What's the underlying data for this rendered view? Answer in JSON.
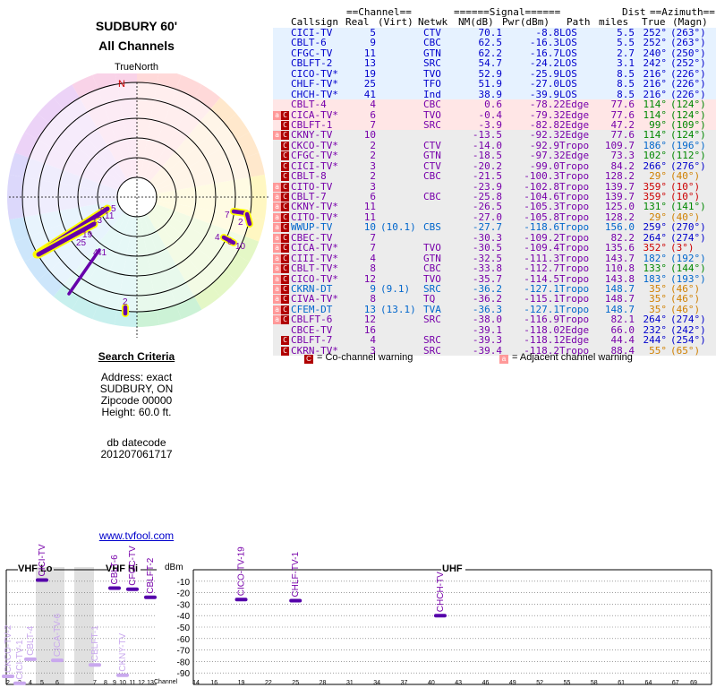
{
  "report": {
    "title_line1": "SUDBURY 60'",
    "title_line2": "All Channels",
    "true_north_label": "TrueNorth",
    "north_letter": "N"
  },
  "criteria": {
    "header": "Search Criteria",
    "address": "Address: exact",
    "location": "SUDBURY, ON",
    "zipcode": "Zipcode 00000",
    "height": "Height: 60.0 ft.",
    "db_label": "db datecode",
    "db_value": "201207061717"
  },
  "link_text": "www.tvfool.com",
  "table_headers": {
    "channel_group": "==Channel==",
    "signal_group": "======Signal======",
    "dist_top": "Dist",
    "azimuth_group": "==Azimuth==",
    "callsign": "Callsign",
    "real": "Real",
    "virt": "(Virt)",
    "netwk": "Netwk",
    "nm": "NM(dB)",
    "pwr": "Pwr(dBm)",
    "path": "Path",
    "miles": "miles",
    "true": "True",
    "magn": "(Magn)"
  },
  "colors": {
    "green": "#008800",
    "blue": "#0000cc",
    "purple": "#7700aa",
    "red": "#cc0000",
    "orange": "#d08000",
    "teal": "#009999",
    "cyan": "#0066cc",
    "yellow": "#ffff00"
  },
  "stations": [
    {
      "callsign": "CICI-TV",
      "real": "5",
      "virt": "",
      "netwk": "CTV",
      "nm": "70.1",
      "pwr": "-8.8",
      "path": "LOS",
      "miles": "5.5",
      "az_true": "252°",
      "az_magn": "(263°)",
      "color": "blue",
      "az_color": "blue",
      "band": "los",
      "warn": ""
    },
    {
      "callsign": "CBLT-6",
      "real": "9",
      "virt": "",
      "netwk": "CBC",
      "nm": "62.5",
      "pwr": "-16.3",
      "path": "LOS",
      "miles": "5.5",
      "az_true": "252°",
      "az_magn": "(263°)",
      "color": "blue",
      "az_color": "blue",
      "band": "los",
      "warn": ""
    },
    {
      "callsign": "CFGC-TV",
      "real": "11",
      "virt": "",
      "netwk": "GTN",
      "nm": "62.2",
      "pwr": "-16.7",
      "path": "LOS",
      "miles": "2.7",
      "az_true": "240°",
      "az_magn": "(250°)",
      "color": "blue",
      "az_color": "blue",
      "band": "los",
      "warn": ""
    },
    {
      "callsign": "CBLFT-2",
      "real": "13",
      "virt": "",
      "netwk": "SRC",
      "nm": "54.7",
      "pwr": "-24.2",
      "path": "LOS",
      "miles": "3.1",
      "az_true": "242°",
      "az_magn": "(252°)",
      "color": "blue",
      "az_color": "blue",
      "band": "los",
      "warn": ""
    },
    {
      "callsign": "CICO-TV*",
      "real": "19",
      "virt": "",
      "netwk": "TVO",
      "nm": "52.9",
      "pwr": "-25.9",
      "path": "LOS",
      "miles": "8.5",
      "az_true": "216°",
      "az_magn": "(226°)",
      "color": "blue",
      "az_color": "blue",
      "band": "los",
      "warn": ""
    },
    {
      "callsign": "CHLF-TV*",
      "real": "25",
      "virt": "",
      "netwk": "TFO",
      "nm": "51.9",
      "pwr": "-27.0",
      "path": "LOS",
      "miles": "8.5",
      "az_true": "216°",
      "az_magn": "(226°)",
      "color": "blue",
      "az_color": "blue",
      "band": "los",
      "warn": ""
    },
    {
      "callsign": "CHCH-TV*",
      "real": "41",
      "virt": "",
      "netwk": "Ind",
      "nm": "38.9",
      "pwr": "-39.9",
      "path": "LOS",
      "miles": "8.5",
      "az_true": "216°",
      "az_magn": "(226°)",
      "color": "blue",
      "az_color": "blue",
      "band": "los",
      "warn": ""
    },
    {
      "callsign": "CBLT-4",
      "real": "4",
      "virt": "",
      "netwk": "CBC",
      "nm": "0.6",
      "pwr": "-78.2",
      "path": "2Edge",
      "miles": "77.6",
      "az_true": "114°",
      "az_magn": "(124°)",
      "color": "purple",
      "az_color": "green",
      "band": "edge",
      "warn": ""
    },
    {
      "callsign": "CICA-TV*",
      "real": "6",
      "virt": "",
      "netwk": "TVO",
      "nm": "-0.4",
      "pwr": "-79.3",
      "path": "2Edge",
      "miles": "77.6",
      "az_true": "114°",
      "az_magn": "(124°)",
      "color": "purple",
      "az_color": "green",
      "band": "edge",
      "warn": "ac"
    },
    {
      "callsign": "CBLFT-1",
      "real": "7",
      "virt": "",
      "netwk": "SRC",
      "nm": "-3.9",
      "pwr": "-82.8",
      "path": "2Edge",
      "miles": "47.2",
      "az_true": "99°",
      "az_magn": "(109°)",
      "color": "purple",
      "az_color": "green",
      "band": "edge",
      "warn": "c"
    },
    {
      "callsign": "CKNY-TV",
      "real": "10",
      "virt": "",
      "netwk": "",
      "nm": "-13.5",
      "pwr": "-92.3",
      "path": "2Edge",
      "miles": "77.6",
      "az_true": "114°",
      "az_magn": "(124°)",
      "color": "purple",
      "az_color": "green",
      "band": "tropo",
      "warn": "ac"
    },
    {
      "callsign": "CKCO-TV*",
      "real": "2",
      "virt": "",
      "netwk": "CTV",
      "nm": "-14.0",
      "pwr": "-92.9",
      "path": "Tropo",
      "miles": "109.7",
      "az_true": "186°",
      "az_magn": "(196°)",
      "color": "purple",
      "az_color": "cyan",
      "band": "tropo",
      "warn": "c"
    },
    {
      "callsign": "CFGC-TV*",
      "real": "2",
      "virt": "",
      "netwk": "GTN",
      "nm": "-18.5",
      "pwr": "-97.3",
      "path": "2Edge",
      "miles": "73.3",
      "az_true": "102°",
      "az_magn": "(112°)",
      "color": "purple",
      "az_color": "green",
      "band": "tropo",
      "warn": "c"
    },
    {
      "callsign": "CICI-TV*",
      "real": "3",
      "virt": "",
      "netwk": "CTV",
      "nm": "-20.2",
      "pwr": "-99.0",
      "path": "Tropo",
      "miles": "84.2",
      "az_true": "266°",
      "az_magn": "(276°)",
      "color": "purple",
      "az_color": "blue",
      "band": "tropo",
      "warn": "c"
    },
    {
      "callsign": "CBLT-8",
      "real": "2",
      "virt": "",
      "netwk": "CBC",
      "nm": "-21.5",
      "pwr": "-100.3",
      "path": "Tropo",
      "miles": "128.2",
      "az_true": "29°",
      "az_magn": "(40°)",
      "color": "purple",
      "az_color": "orange",
      "band": "tropo",
      "warn": "c"
    },
    {
      "callsign": "CITO-TV",
      "real": "3",
      "virt": "",
      "netwk": "",
      "nm": "-23.9",
      "pwr": "-102.8",
      "path": "Tropo",
      "miles": "139.7",
      "az_true": "359°",
      "az_magn": "(10°)",
      "color": "purple",
      "az_color": "red",
      "band": "tropo",
      "warn": "ac"
    },
    {
      "callsign": "CBLT-7",
      "real": "6",
      "virt": "",
      "netwk": "CBC",
      "nm": "-25.8",
      "pwr": "-104.6",
      "path": "Tropo",
      "miles": "139.7",
      "az_true": "359°",
      "az_magn": "(10°)",
      "color": "purple",
      "az_color": "red",
      "band": "tropo",
      "warn": "ac"
    },
    {
      "callsign": "CKNY-TV*",
      "real": "11",
      "virt": "",
      "netwk": "",
      "nm": "-26.5",
      "pwr": "-105.3",
      "path": "Tropo",
      "miles": "125.0",
      "az_true": "131°",
      "az_magn": "(141°)",
      "color": "purple",
      "az_color": "green",
      "band": "tropo",
      "warn": "ac"
    },
    {
      "callsign": "CITO-TV*",
      "real": "11",
      "virt": "",
      "netwk": "",
      "nm": "-27.0",
      "pwr": "-105.8",
      "path": "Tropo",
      "miles": "128.2",
      "az_true": "29°",
      "az_magn": "(40°)",
      "color": "purple",
      "az_color": "orange",
      "band": "tropo",
      "warn": "ac"
    },
    {
      "callsign": "WWUP-TV",
      "real": "10",
      "virt": "(10.1)",
      "netwk": "CBS",
      "nm": "-27.7",
      "pwr": "-118.6",
      "path": "Tropo",
      "miles": "156.0",
      "az_true": "259°",
      "az_magn": "(270°)",
      "color": "cyan",
      "az_color": "blue",
      "band": "tropo",
      "warn": "ac"
    },
    {
      "callsign": "CBEC-TV",
      "real": "7",
      "virt": "",
      "netwk": "",
      "nm": "-30.3",
      "pwr": "-109.2",
      "path": "Tropo",
      "miles": "82.2",
      "az_true": "264°",
      "az_magn": "(274°)",
      "color": "purple",
      "az_color": "blue",
      "band": "tropo",
      "warn": "ac"
    },
    {
      "callsign": "CICA-TV*",
      "real": "7",
      "virt": "",
      "netwk": "TVO",
      "nm": "-30.5",
      "pwr": "-109.4",
      "path": "Tropo",
      "miles": "135.6",
      "az_true": "352°",
      "az_magn": "(3°)",
      "color": "purple",
      "az_color": "red",
      "band": "tropo",
      "warn": "ac"
    },
    {
      "callsign": "CIII-TV*",
      "real": "4",
      "virt": "",
      "netwk": "GTN",
      "nm": "-32.5",
      "pwr": "-111.3",
      "path": "Tropo",
      "miles": "143.7",
      "az_true": "182°",
      "az_magn": "(192°)",
      "color": "purple",
      "az_color": "cyan",
      "band": "tropo",
      "warn": "ac"
    },
    {
      "callsign": "CBLT-TV*",
      "real": "8",
      "virt": "",
      "netwk": "CBC",
      "nm": "-33.8",
      "pwr": "-112.7",
      "path": "Tropo",
      "miles": "110.8",
      "az_true": "133°",
      "az_magn": "(144°)",
      "color": "purple",
      "az_color": "green",
      "band": "tropo",
      "warn": "ac"
    },
    {
      "callsign": "CICO-TV*",
      "real": "12",
      "virt": "",
      "netwk": "TVO",
      "nm": "-35.7",
      "pwr": "-114.5",
      "path": "Tropo",
      "miles": "143.8",
      "az_true": "183°",
      "az_magn": "(193°)",
      "color": "purple",
      "az_color": "cyan",
      "band": "tropo",
      "warn": "ac"
    },
    {
      "callsign": "CKRN-DT",
      "real": "9",
      "virt": "(9.1)",
      "netwk": "SRC",
      "nm": "-36.2",
      "pwr": "-127.1",
      "path": "Tropo",
      "miles": "148.7",
      "az_true": "35°",
      "az_magn": "(46°)",
      "color": "cyan",
      "az_color": "orange",
      "band": "tropo",
      "warn": "ac"
    },
    {
      "callsign": "CIVA-TV*",
      "real": "8",
      "virt": "",
      "netwk": "TQ",
      "nm": "-36.2",
      "pwr": "-115.1",
      "path": "Tropo",
      "miles": "148.7",
      "az_true": "35°",
      "az_magn": "(46°)",
      "color": "purple",
      "az_color": "orange",
      "band": "tropo",
      "warn": "ac"
    },
    {
      "callsign": "CFEM-DT",
      "real": "13",
      "virt": "(13.1)",
      "netwk": "TVA",
      "nm": "-36.3",
      "pwr": "-127.1",
      "path": "Tropo",
      "miles": "148.7",
      "az_true": "35°",
      "az_magn": "(46°)",
      "color": "cyan",
      "az_color": "orange",
      "band": "tropo",
      "warn": "ac"
    },
    {
      "callsign": "CBLFT-6",
      "real": "12",
      "virt": "",
      "netwk": "SRC",
      "nm": "-38.0",
      "pwr": "-116.9",
      "path": "Tropo",
      "miles": "82.1",
      "az_true": "264°",
      "az_magn": "(274°)",
      "color": "purple",
      "az_color": "blue",
      "band": "tropo",
      "warn": "ac"
    },
    {
      "callsign": "CBCE-TV",
      "real": "16",
      "virt": "",
      "netwk": "",
      "nm": "-39.1",
      "pwr": "-118.0",
      "path": "2Edge",
      "miles": "66.0",
      "az_true": "232°",
      "az_magn": "(242°)",
      "color": "purple",
      "az_color": "blue",
      "band": "tropo",
      "warn": ""
    },
    {
      "callsign": "CBLFT-7",
      "real": "4",
      "virt": "",
      "netwk": "SRC",
      "nm": "-39.3",
      "pwr": "-118.1",
      "path": "2Edge",
      "miles": "44.4",
      "az_true": "244°",
      "az_magn": "(254°)",
      "color": "purple",
      "az_color": "blue",
      "band": "tropo",
      "warn": "c"
    },
    {
      "callsign": "CKRN-TV*",
      "real": "3",
      "virt": "",
      "netwk": "SRC",
      "nm": "-39.4",
      "pwr": "-118.2",
      "path": "Tropo",
      "miles": "88.4",
      "az_true": "55°",
      "az_magn": "(65°)",
      "color": "purple",
      "az_color": "orange",
      "band": "tropo",
      "warn": "c"
    }
  ],
  "legend": {
    "co_letter": "C",
    "adj_letter": "a",
    "co_text": "= Co-channel warning",
    "adj_text": "= Adjacent channel warning"
  },
  "polar_labels": [
    {
      "text": "5",
      "color": "purple"
    },
    {
      "text": "9",
      "color": "purple"
    },
    {
      "text": "11",
      "color": "purple"
    },
    {
      "text": "13",
      "color": "purple"
    },
    {
      "text": "19",
      "color": "purple"
    },
    {
      "text": "25",
      "color": "purple"
    },
    {
      "text": "41",
      "color": "purple"
    },
    {
      "text": "4",
      "color": "purple"
    },
    {
      "text": "7",
      "color": "purple"
    },
    {
      "text": "2",
      "color": "purple"
    },
    {
      "text": "4",
      "color": "purple"
    },
    {
      "text": "6",
      "color": "purple"
    },
    {
      "text": "10",
      "color": "purple"
    },
    {
      "text": "2",
      "color": "purple"
    }
  ],
  "spectrum": {
    "vhf_lo_label": "VHF Lo",
    "vhf_hi_label": "VHF Hi",
    "uhf_label": "UHF",
    "dbm_label": "dBm",
    "channel_label": "Channel",
    "y_ticks": [
      "-10",
      "-20",
      "-30",
      "-40",
      "-50",
      "-60",
      "-70",
      "-80",
      "-90"
    ],
    "lo_channels": [
      "2",
      "3",
      "4",
      "5",
      "6"
    ],
    "hi_channels": [
      "7",
      "8",
      "9",
      "10",
      "11",
      "12",
      "13"
    ],
    "uhf_channels": [
      "14",
      "16",
      "19",
      "22",
      "25",
      "28",
      "31",
      "34",
      "37",
      "40",
      "43",
      "46",
      "49",
      "52",
      "55",
      "58",
      "61",
      "64",
      "67",
      "69"
    ],
    "marks": [
      {
        "label": "CKCO-TV-2",
        "ch": 2,
        "pwr": -93
      },
      {
        "label": "CICI-TV-1",
        "ch": 3,
        "pwr": -99
      },
      {
        "label": "CBLT-4",
        "ch": 4,
        "pwr": -78
      },
      {
        "label": "CICI-TV",
        "ch": 5,
        "pwr": -9
      },
      {
        "label": "CICA-TV-6",
        "ch": 6,
        "pwr": -79
      },
      {
        "label": "CBLFT-1",
        "ch": 7,
        "pwr": -83
      },
      {
        "label": "CBLT-6",
        "ch": 9,
        "pwr": -16
      },
      {
        "label": "CKNY-TV",
        "ch": 10,
        "pwr": -92
      },
      {
        "label": "CFGC-TV",
        "ch": 11,
        "pwr": -17
      },
      {
        "label": "CBLFT-2",
        "ch": 13,
        "pwr": -24
      },
      {
        "label": "CICO-TV-19",
        "ch": 19,
        "pwr": -26
      },
      {
        "label": "CHLF-TV-1",
        "ch": 25,
        "pwr": -27
      },
      {
        "label": "CHCH-TV",
        "ch": 41,
        "pwr": -40
      }
    ]
  }
}
